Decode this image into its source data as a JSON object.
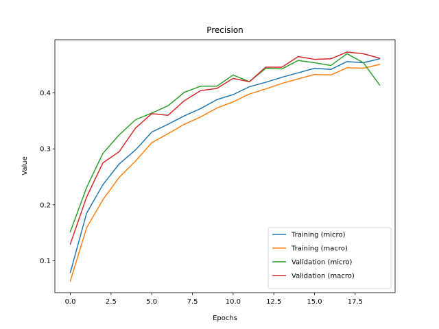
{
  "chart_data": {
    "type": "line",
    "title": "Precision",
    "xlabel": "Epochs",
    "ylabel": "Value",
    "x": [
      0,
      1,
      2,
      3,
      4,
      5,
      6,
      7,
      8,
      9,
      10,
      11,
      12,
      13,
      14,
      15,
      16,
      17,
      18,
      19
    ],
    "xlim": [
      -0.95,
      19.95
    ],
    "ylim": [
      0.043,
      0.495
    ],
    "xticks": [
      0.0,
      2.5,
      5.0,
      7.5,
      10.0,
      12.5,
      15.0,
      17.5
    ],
    "xtick_labels": [
      "0.0",
      "2.5",
      "5.0",
      "7.5",
      "10.0",
      "12.5",
      "15.0",
      "17.5"
    ],
    "yticks": [
      0.1,
      0.2,
      0.3,
      0.4
    ],
    "ytick_labels": [
      "0.1",
      "0.2",
      "0.3",
      "0.4"
    ],
    "grid": false,
    "legend_position": "bottom-right",
    "series": [
      {
        "name": "Training (micro)",
        "color": "#1f77b4",
        "values": [
          0.079,
          0.185,
          0.236,
          0.273,
          0.298,
          0.33,
          0.344,
          0.359,
          0.372,
          0.388,
          0.397,
          0.411,
          0.419,
          0.428,
          0.436,
          0.444,
          0.442,
          0.456,
          0.454,
          0.461
        ]
      },
      {
        "name": "Training (macro)",
        "color": "#ff7f0e",
        "values": [
          0.064,
          0.159,
          0.209,
          0.249,
          0.278,
          0.311,
          0.327,
          0.344,
          0.357,
          0.373,
          0.384,
          0.398,
          0.407,
          0.417,
          0.425,
          0.433,
          0.432,
          0.445,
          0.444,
          0.451
        ]
      },
      {
        "name": "Validation (micro)",
        "color": "#2ca02c",
        "values": [
          0.152,
          0.231,
          0.292,
          0.325,
          0.352,
          0.364,
          0.377,
          0.401,
          0.412,
          0.412,
          0.432,
          0.42,
          0.444,
          0.443,
          0.458,
          0.454,
          0.449,
          0.47,
          0.454,
          0.414
        ]
      },
      {
        "name": "Validation (macro)",
        "color": "#d62728",
        "values": [
          0.13,
          0.214,
          0.275,
          0.295,
          0.337,
          0.363,
          0.36,
          0.386,
          0.404,
          0.408,
          0.426,
          0.42,
          0.446,
          0.446,
          0.465,
          0.46,
          0.461,
          0.473,
          0.47,
          0.462
        ]
      }
    ]
  }
}
